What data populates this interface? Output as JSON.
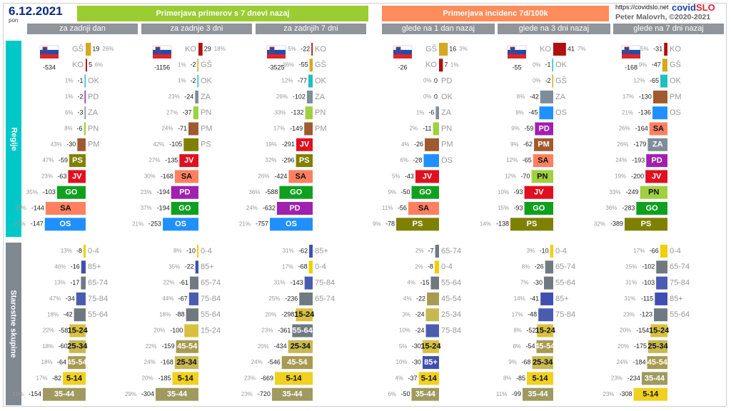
{
  "header": {
    "date": "6.12.2021",
    "weekday": "pon",
    "group_left": "Primerjava primerov s 7 dnevi nazaj",
    "group_right": "Primerjava incidenc 7d/100k",
    "url": "https://covidslo.net",
    "logo_a": "covid",
    "logo_b": "SLO",
    "author": "Peter Malovrh, ©2020-2021"
  },
  "side_labels": {
    "regions": "Regije",
    "ages": "Starostne skupine"
  },
  "colors": {
    "green_header": "#9acd32",
    "orange_header": "#ff8c5a",
    "sidebar_regions": "#00c8c8",
    "sidebar_ages": "#808890",
    "GŠ": "#d4a820",
    "KO": "#b01010",
    "OK": "#20c0c0",
    "PD": "#a020b0",
    "ZA": "#7f8c9a",
    "PN": "#a0d040",
    "PM": "#a05a30",
    "PS": "#808000",
    "JV": "#e01020",
    "GO": "#10a020",
    "SA": "#ff8060",
    "OS": "#2090ff",
    "0-4": "#f0d000",
    "85+": "#4050b0",
    "65-74": "#707a80",
    "75-84": "#4a5cb0",
    "55-64": "#707880",
    "15-24": "#d8c040",
    "25-34": "#c8b850",
    "45-54": "#a89a50",
    "5-14": "#f0d020",
    "35-44": "#a09a60"
  },
  "chart_data": [
    {
      "type": "bar",
      "title": "za zadnji dan",
      "panel": "cases",
      "total": "-534",
      "regions": [
        {
          "label": "GŠ",
          "value": 19,
          "pct": "26%"
        },
        {
          "label": "KO",
          "value": 5,
          "pct": "6%"
        },
        {
          "label": "OK",
          "value": -1,
          "pct": "1%"
        },
        {
          "label": "PD",
          "value": -2,
          "pct": "1%"
        },
        {
          "label": "ZA",
          "value": -3,
          "pct": "6%"
        },
        {
          "label": "PN",
          "value": -6,
          "pct": "8%"
        },
        {
          "label": "PM",
          "value": -30,
          "pct": "43%"
        },
        {
          "label": "PS",
          "value": -59,
          "pct": "47%"
        },
        {
          "label": "JV",
          "value": -63,
          "pct": "23%"
        },
        {
          "label": "GO",
          "value": -103,
          "pct": "35%"
        },
        {
          "label": "SA",
          "value": -144,
          "pct": "35%"
        },
        {
          "label": "OS",
          "value": -147,
          "pct": "23%"
        }
      ],
      "ages": [
        {
          "label": "0-4",
          "value": -8,
          "pct": "13%"
        },
        {
          "label": "85+",
          "value": -16,
          "pct": "46%"
        },
        {
          "label": "65-74",
          "value": -17,
          "pct": "13%"
        },
        {
          "label": "75-84",
          "value": -34,
          "pct": "47%"
        },
        {
          "label": "55-64",
          "value": -42,
          "pct": "18%"
        },
        {
          "label": "15-24",
          "value": -58,
          "pct": "22%"
        },
        {
          "label": "25-34",
          "value": -60,
          "pct": "18%"
        },
        {
          "label": "45-54",
          "value": -64,
          "pct": "18%"
        },
        {
          "label": "5-14",
          "value": -82,
          "pct": "17%"
        },
        {
          "label": "35-44",
          "value": -154,
          "pct": "31%"
        }
      ]
    },
    {
      "type": "bar",
      "title": "za zadnje 3 dni",
      "panel": "cases",
      "total": "-1156",
      "regions": [
        {
          "label": "KO",
          "value": 29,
          "pct": "18%"
        },
        {
          "label": "GŠ",
          "value": -2,
          "pct": "1%"
        },
        {
          "label": "OK",
          "value": -2,
          "pct": "1%"
        },
        {
          "label": "ZA",
          "value": -24,
          "pct": "23%"
        },
        {
          "label": "PN",
          "value": -37,
          "pct": "27%"
        },
        {
          "label": "PM",
          "value": -71,
          "pct": "24%"
        },
        {
          "label": "PS",
          "value": -105,
          "pct": "42%"
        },
        {
          "label": "JV",
          "value": -135,
          "pct": "27%"
        },
        {
          "label": "SA",
          "value": -168,
          "pct": "30%"
        },
        {
          "label": "PD",
          "value": -194,
          "pct": "23%"
        },
        {
          "label": "GO",
          "value": -194,
          "pct": "37%"
        },
        {
          "label": "OS",
          "value": -253,
          "pct": "21%"
        }
      ],
      "ages": [
        {
          "label": "0-4",
          "value": -10,
          "pct": "8%"
        },
        {
          "label": "85+",
          "value": -22,
          "pct": "35%"
        },
        {
          "label": "65-74",
          "value": -61,
          "pct": "22%"
        },
        {
          "label": "75-84",
          "value": -67,
          "pct": "44%"
        },
        {
          "label": "55-64",
          "value": -88,
          "pct": "18%"
        },
        {
          "label": "15-24",
          "value": -100,
          "pct": "20%"
        },
        {
          "label": "45-54",
          "value": -159,
          "pct": "22%"
        },
        {
          "label": "25-34",
          "value": -168,
          "pct": "24%"
        },
        {
          "label": "5-14",
          "value": -185,
          "pct": "20%"
        },
        {
          "label": "35-44",
          "value": -304,
          "pct": "29%"
        }
      ]
    },
    {
      "type": "bar",
      "title": "za zadnjih 7 dni",
      "panel": "cases",
      "total": "-3525",
      "regions": [
        {
          "label": "KO",
          "value": -22,
          "pct": "5%"
        },
        {
          "label": "GŠ",
          "value": -55,
          "pct": "36%"
        },
        {
          "label": "OK",
          "value": -77,
          "pct": "12%"
        },
        {
          "label": "ZA",
          "value": -102,
          "pct": "26%"
        },
        {
          "label": "PN",
          "value": -132,
          "pct": "33%"
        },
        {
          "label": "PM",
          "value": -149,
          "pct": "17%"
        },
        {
          "label": "JV",
          "value": -291,
          "pct": "19%"
        },
        {
          "label": "PS",
          "value": -296,
          "pct": "32%"
        },
        {
          "label": "SA",
          "value": -424,
          "pct": "26%"
        },
        {
          "label": "GO",
          "value": -588,
          "pct": "36%"
        },
        {
          "label": "PD",
          "value": -632,
          "pct": "24%"
        },
        {
          "label": "OS",
          "value": -757,
          "pct": "21%"
        }
      ],
      "ages": [
        {
          "label": "85+",
          "value": -62,
          "pct": "31%"
        },
        {
          "label": "0-4",
          "value": -68,
          "pct": "17%"
        },
        {
          "label": "75-84",
          "value": -143,
          "pct": "31%"
        },
        {
          "label": "65-74",
          "value": -236,
          "pct": "25%"
        },
        {
          "label": "15-24",
          "value": -298,
          "pct": "20%"
        },
        {
          "label": "55-64",
          "value": -361,
          "pct": "23%"
        },
        {
          "label": "25-34",
          "value": -434,
          "pct": "20%"
        },
        {
          "label": "45-54",
          "value": -546,
          "pct": "24%"
        },
        {
          "label": "5-14",
          "value": -669,
          "pct": "23%"
        },
        {
          "label": "35-44",
          "value": -720,
          "pct": "23%"
        }
      ]
    },
    {
      "type": "bar",
      "title": "glede na 1 dan nazaj",
      "panel": "incidence",
      "total": "-26",
      "regions": [
        {
          "label": "GŠ",
          "value": 16,
          "pct": "3%"
        },
        {
          "label": "KO",
          "value": 7,
          "pct": "1%"
        },
        {
          "label": "PD",
          "value": 0,
          "pct": "0%"
        },
        {
          "label": "OK",
          "value": 0,
          "pct": "0%"
        },
        {
          "label": "ZA",
          "value": -6,
          "pct": "1%"
        },
        {
          "label": "PN",
          "value": -11,
          "pct": "2%"
        },
        {
          "label": "PM",
          "value": -26,
          "pct": "4%"
        },
        {
          "label": "OS",
          "value": -28,
          "pct": "6%"
        },
        {
          "label": "JV",
          "value": -43,
          "pct": "5%"
        },
        {
          "label": "GO",
          "value": -50,
          "pct": "9%"
        },
        {
          "label": "SA",
          "value": -56,
          "pct": "11%"
        },
        {
          "label": "PS",
          "value": -78,
          "pct": "9%"
        }
      ],
      "ages": [
        {
          "label": "65-74",
          "value": -7,
          "pct": "2%"
        },
        {
          "label": "0-4",
          "value": -8,
          "pct": "2%"
        },
        {
          "label": "55-64",
          "value": -15,
          "pct": "4%"
        },
        {
          "label": "45-54",
          "value": -22,
          "pct": "4%"
        },
        {
          "label": "25-34",
          "value": -24,
          "pct": "3%"
        },
        {
          "label": "75-84",
          "value": -24,
          "pct": "10%"
        },
        {
          "label": "15-24",
          "value": -30,
          "pct": "5%"
        },
        {
          "label": "85+",
          "value": -30,
          "pct": "10%"
        },
        {
          "label": "5-14",
          "value": -37,
          "pct": "4%"
        },
        {
          "label": "35-44",
          "value": -50,
          "pct": "6%"
        }
      ]
    },
    {
      "type": "bar",
      "title": "glede na 3 dni nazaj",
      "panel": "incidence",
      "total": "-55",
      "regions": [
        {
          "label": "KO",
          "value": 41,
          "pct": "7%"
        },
        {
          "label": "OK",
          "value": -1,
          "pct": "0%"
        },
        {
          "label": "GŠ",
          "value": -2,
          "pct": "0%"
        },
        {
          "label": "ZA",
          "value": -42,
          "pct": "8%"
        },
        {
          "label": "OS",
          "value": -45,
          "pct": "8%"
        },
        {
          "label": "PD",
          "value": -59,
          "pct": "9%"
        },
        {
          "label": "PM",
          "value": -62,
          "pct": "9%"
        },
        {
          "label": "SA",
          "value": -65,
          "pct": "12%"
        },
        {
          "label": "PN",
          "value": -70,
          "pct": "12%"
        },
        {
          "label": "JV",
          "value": -93,
          "pct": "10%"
        },
        {
          "label": "GO",
          "value": -93,
          "pct": "15%"
        },
        {
          "label": "PS",
          "value": -138,
          "pct": "14%"
        }
      ],
      "ages": [
        {
          "label": "0-4",
          "value": -10,
          "pct": "3%"
        },
        {
          "label": "65-74",
          "value": -26,
          "pct": "8%"
        },
        {
          "label": "55-64",
          "value": -30,
          "pct": "7%"
        },
        {
          "label": "85+",
          "value": -41,
          "pct": "14%"
        },
        {
          "label": "75-84",
          "value": -48,
          "pct": "17%"
        },
        {
          "label": "15-24",
          "value": -52,
          "pct": "8%"
        },
        {
          "label": "45-54",
          "value": -54,
          "pct": "8%"
        },
        {
          "label": "25-34",
          "value": -68,
          "pct": "9%"
        },
        {
          "label": "5-14",
          "value": -85,
          "pct": "8%"
        },
        {
          "label": "35-44",
          "value": -99,
          "pct": "11%"
        }
      ]
    },
    {
      "type": "bar",
      "title": "glede na 7 dni nazaj",
      "panel": "incidence",
      "total": "-168",
      "regions": [
        {
          "label": "KO",
          "value": -31,
          "pct": "5%"
        },
        {
          "label": "GŠ",
          "value": -47,
          "pct": "9%"
        },
        {
          "label": "OK",
          "value": -65,
          "pct": "12%"
        },
        {
          "label": "PM",
          "value": -130,
          "pct": "17%"
        },
        {
          "label": "OS",
          "value": -136,
          "pct": "21%"
        },
        {
          "label": "SA",
          "value": -164,
          "pct": "26%"
        },
        {
          "label": "ZA",
          "value": -179,
          "pct": "26%"
        },
        {
          "label": "PD",
          "value": -193,
          "pct": "24%"
        },
        {
          "label": "JV",
          "value": -200,
          "pct": "19%"
        },
        {
          "label": "PN",
          "value": -249,
          "pct": "33%"
        },
        {
          "label": "GO",
          "value": -283,
          "pct": "36%"
        },
        {
          "label": "PS",
          "value": -389,
          "pct": "32%"
        }
      ],
      "ages": [
        {
          "label": "0-4",
          "value": -66,
          "pct": "17%"
        },
        {
          "label": "65-74",
          "value": -102,
          "pct": "25%"
        },
        {
          "label": "75-84",
          "value": -103,
          "pct": "31%"
        },
        {
          "label": "85+",
          "value": -115,
          "pct": "31%"
        },
        {
          "label": "55-64",
          "value": -123,
          "pct": "23%"
        },
        {
          "label": "15-24",
          "value": -154,
          "pct": "20%"
        },
        {
          "label": "25-34",
          "value": -175,
          "pct": "20%"
        },
        {
          "label": "45-54",
          "value": -184,
          "pct": "24%"
        },
        {
          "label": "35-44",
          "value": -234,
          "pct": "23%"
        },
        {
          "label": "5-14",
          "value": -308,
          "pct": "23%"
        }
      ]
    }
  ]
}
